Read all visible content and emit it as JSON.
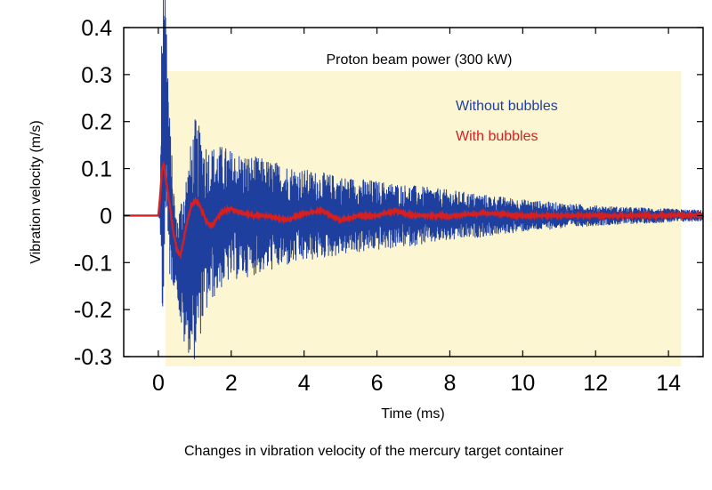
{
  "chart_data": {
    "type": "line",
    "xlabel": "Time (ms)",
    "ylabel": "Vibration velocity (m/s)",
    "caption": "Changes in vibration velocity of the mercury target container",
    "region_label": "Proton beam power (300 kW)",
    "region_color": "#fdf6d3",
    "xlim": [
      -0.95,
      14.95
    ],
    "ylim": [
      -0.3,
      0.4
    ],
    "region_x": [
      0.2,
      14.35
    ],
    "xticks": [
      "0",
      "2",
      "4",
      "6",
      "8",
      "10",
      "12",
      "14"
    ],
    "yticks": [
      "0.4",
      "0.3",
      "0.2",
      "0.1",
      "0",
      "-0.1",
      "-0.2",
      "-0.3"
    ],
    "grid": false,
    "series": [
      {
        "name": "Without bubbles",
        "color": "#1f3f9f",
        "x": [
          -0.95,
          0.0,
          0.05,
          0.1,
          0.15,
          0.2,
          0.25,
          0.3,
          0.4,
          0.5,
          0.6,
          0.7,
          0.8,
          0.9,
          1.0,
          1.2,
          1.4,
          1.6,
          1.8,
          2.0,
          2.5,
          3.0,
          3.5,
          4.0,
          5.0,
          6.0,
          7.0,
          8.0,
          9.0,
          10.0,
          11.0,
          12.0,
          13.0,
          14.0,
          14.95
        ],
        "envelope": [
          0.0,
          0.0,
          0.02,
          0.35,
          0.4,
          0.26,
          0.22,
          0.18,
          0.12,
          0.07,
          0.13,
          0.18,
          0.2,
          0.23,
          0.26,
          0.21,
          0.17,
          0.16,
          0.15,
          0.14,
          0.13,
          0.12,
          0.11,
          0.1,
          0.085,
          0.075,
          0.065,
          0.055,
          0.045,
          0.035,
          0.028,
          0.022,
          0.018,
          0.015,
          0.012
        ],
        "baseline": [
          0.0,
          0.0,
          0.0,
          0.12,
          0.25,
          0.22,
          0.15,
          0.05,
          -0.03,
          -0.08,
          -0.1,
          -0.1,
          -0.09,
          -0.07,
          -0.05,
          -0.03,
          -0.02,
          -0.01,
          0.0,
          0.0,
          0.0,
          0.0,
          0.0,
          0.0,
          0.0,
          0.0,
          0.0,
          0.0,
          0.0,
          0.0,
          0.0,
          0.0,
          0.0,
          0.0,
          0.0
        ]
      },
      {
        "name": "With bubbles",
        "color": "#d42020",
        "x": [
          -0.95,
          0.0,
          0.05,
          0.1,
          0.15,
          0.2,
          0.3,
          0.4,
          0.5,
          0.6,
          0.7,
          0.8,
          0.9,
          1.0,
          1.1,
          1.2,
          1.3,
          1.4,
          1.5,
          1.6,
          1.8,
          2.0,
          2.3,
          2.6,
          3.0,
          3.5,
          4.0,
          4.5,
          5.0,
          5.5,
          6.0,
          6.5,
          7.0,
          8.0,
          9.0,
          10.0,
          11.0,
          12.0,
          13.0,
          14.0,
          14.95
        ],
        "y": [
          0.0,
          0.0,
          0.04,
          0.1,
          0.11,
          0.08,
          0.03,
          -0.03,
          -0.07,
          -0.085,
          -0.05,
          -0.01,
          0.02,
          0.03,
          0.025,
          0.01,
          -0.01,
          -0.02,
          -0.02,
          -0.005,
          0.01,
          0.015,
          0.005,
          0.0,
          0.0,
          -0.01,
          0.005,
          0.01,
          -0.01,
          0.0,
          0.0,
          0.01,
          0.0,
          0.0,
          0.005,
          0.0,
          0.0,
          0.0,
          0.0,
          0.0,
          0.0
        ]
      }
    ]
  }
}
